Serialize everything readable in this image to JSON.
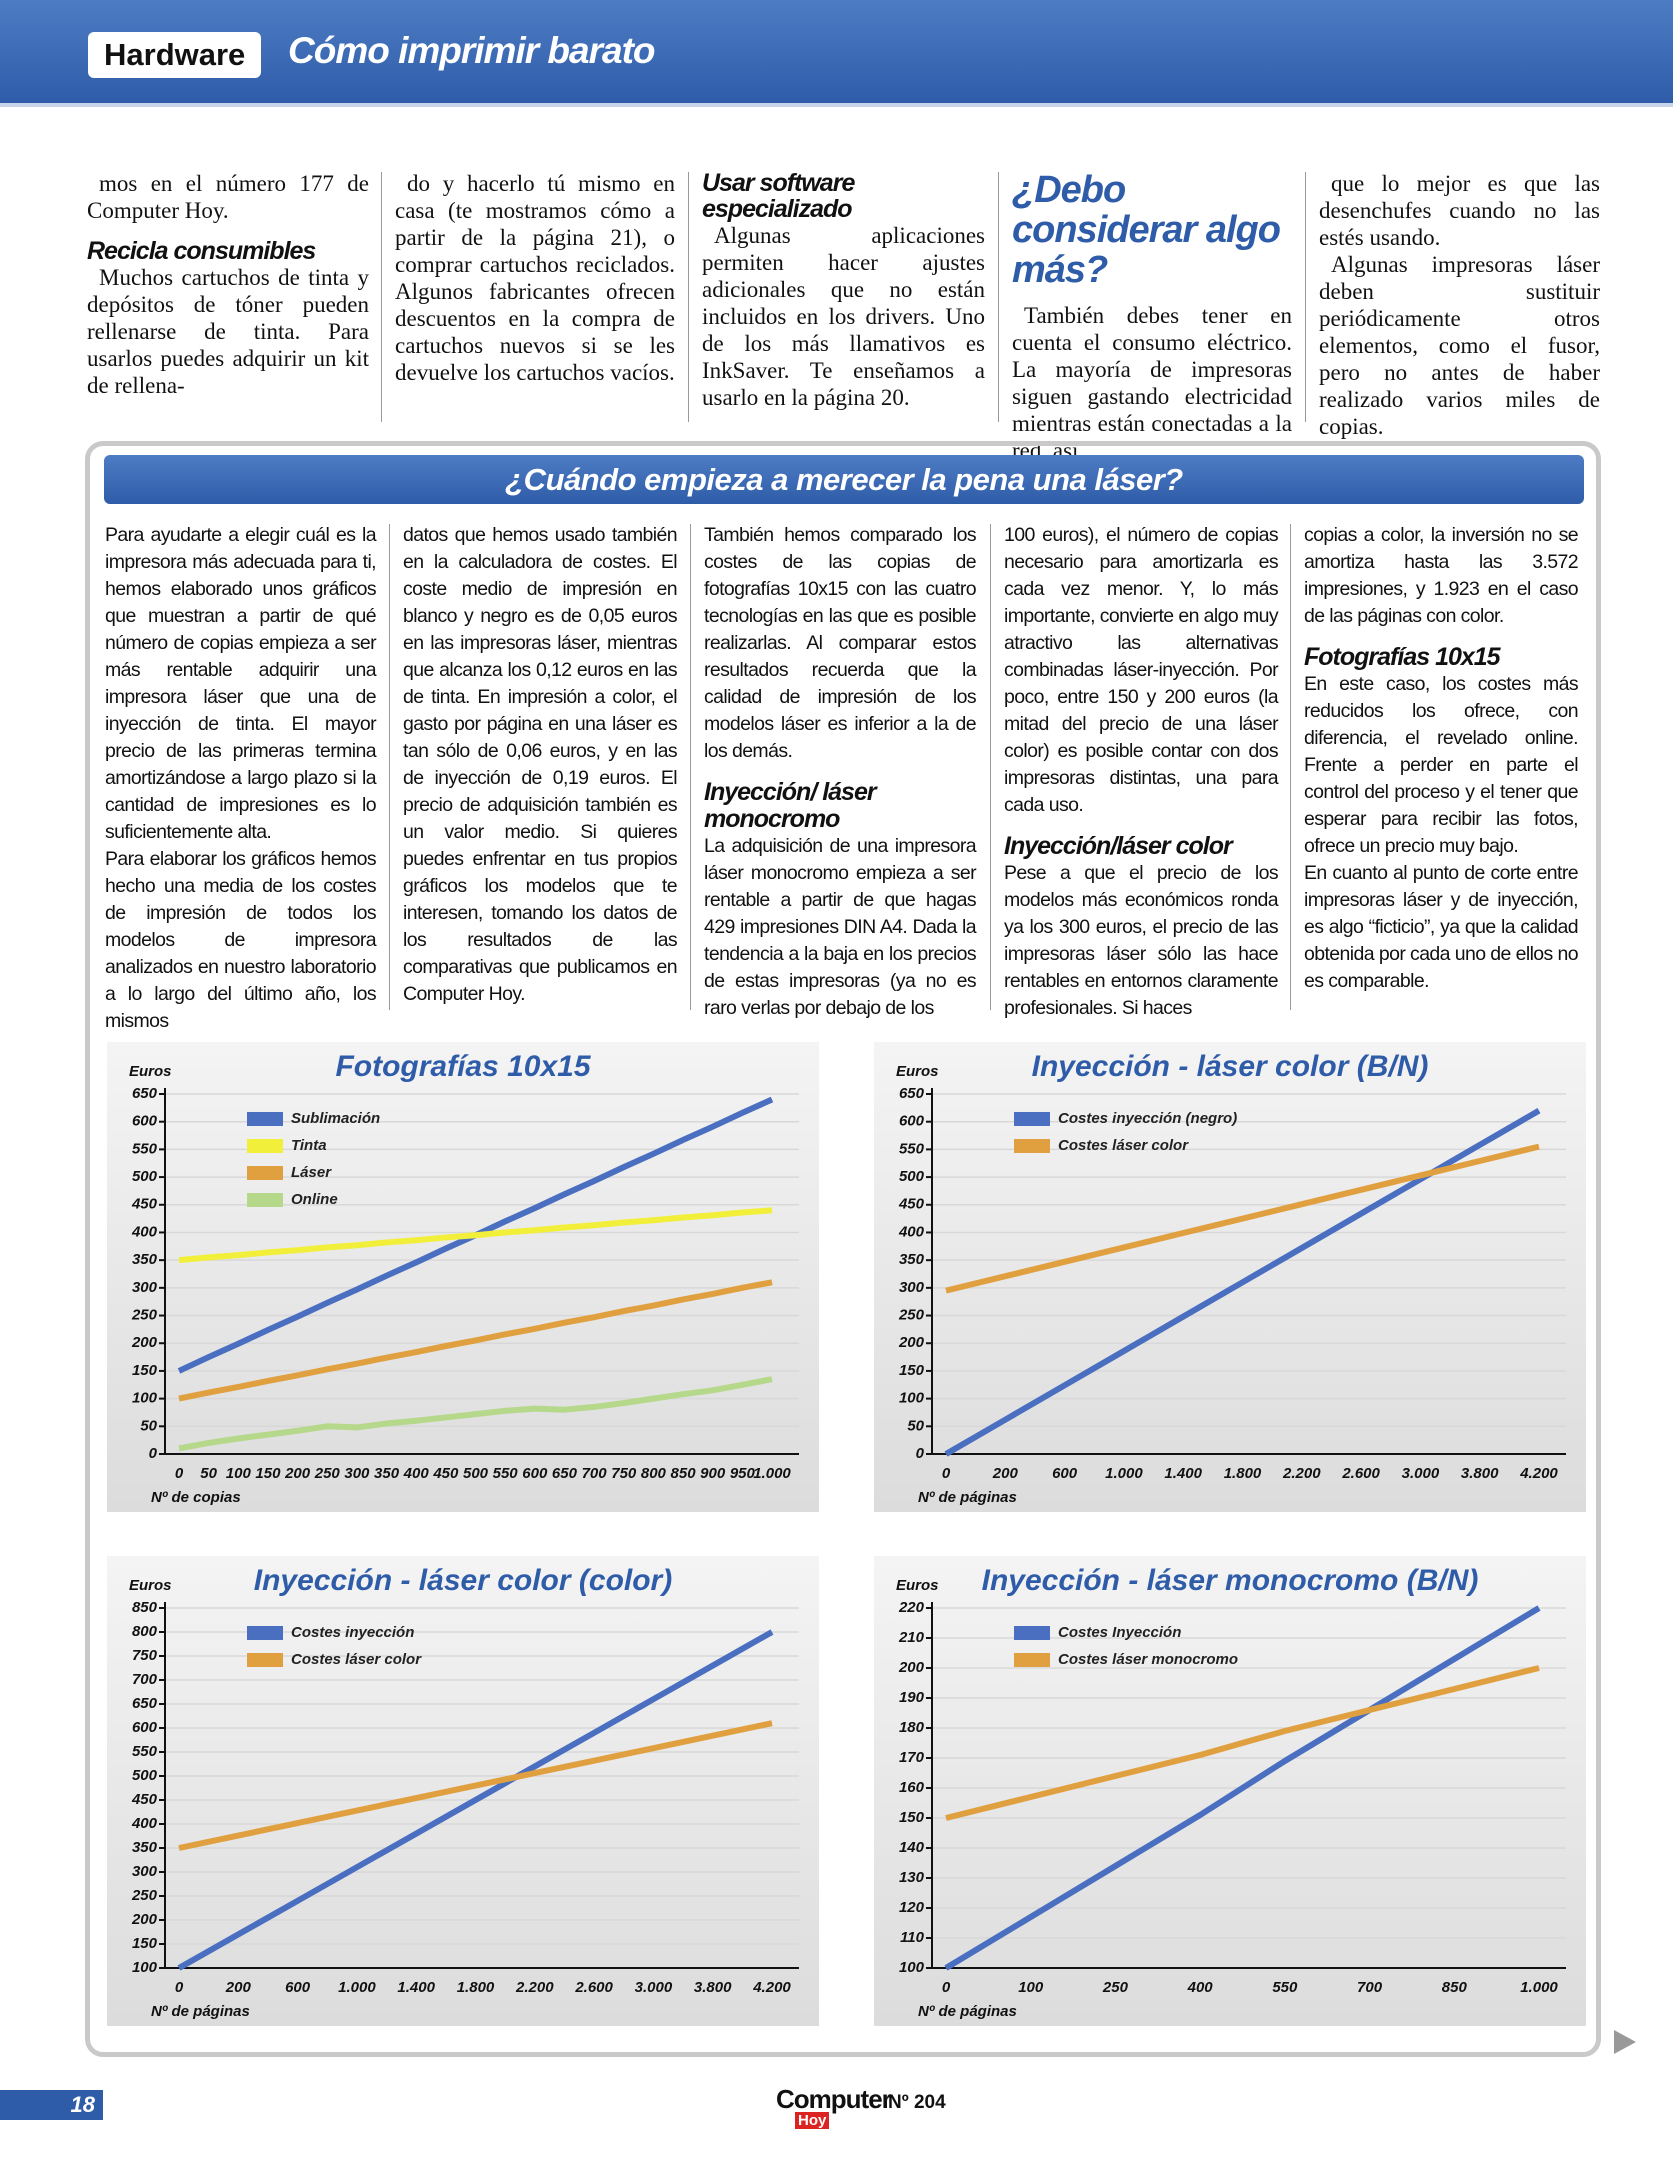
{
  "header": {
    "section": "Hardware",
    "title": "Cómo imprimir barato"
  },
  "top_columns": [
    [
      {
        "text": "mos en el número 177 de Computer Hoy."
      },
      {
        "heading": "Recicla consumibles"
      },
      {
        "text": "Muchos cartuchos de tinta y depósitos de tóner pueden rellenarse de tinta. Para usarlos puedes adquirir un kit de rellena-"
      }
    ],
    [
      {
        "text": "do y hacerlo tú mismo en casa (te mostramos cómo a partir de la página 21), o comprar cartuchos reciclados. Algunos fabricantes ofrecen descuentos en la compra de cartuchos nuevos si se les devuelve los cartuchos vacíos."
      }
    ],
    [
      {
        "heading": "Usar software especializado"
      },
      {
        "text": "Algunas aplicaciones permiten hacer ajustes adicionales que no están incluidos en los drivers. Uno de los más llamativos es InkSaver. Te enseñamos a usarlo en la página 20."
      }
    ],
    [
      {
        "heading": "¿Debo considerar algo más?"
      },
      {
        "text": "También debes tener en cuenta el consumo eléctrico. La mayoría de impresoras siguen gastando electricidad mientras están conectadas a la red, así"
      }
    ],
    [
      {
        "text": "que lo mejor es que las desenchufes cuando no las estés usando."
      },
      {
        "text": "Algunas impresoras láser deben sustituir periódicamente otros elementos, como el fusor, pero no antes de haber realizado varios miles de copias."
      }
    ]
  ],
  "box": {
    "title": "¿Cuándo empieza a merecer la pena una láser?",
    "columns": [
      [
        {
          "text": "Para ayudarte a elegir cuál es la impresora más adecuada para ti, hemos elaborado unos gráficos que muestran a partir de qué número de copias empieza a ser más rentable adquirir una impresora láser que una de inyección de tinta. El mayor precio de las primeras termina amortizándose a largo plazo si la cantidad de impresiones es lo suficientemente alta."
        },
        {
          "text": "Para elaborar los gráficos hemos hecho una media de los costes de impresión de todos los modelos de impresora analizados en nuestro laboratorio a lo largo del último año, los mismos"
        }
      ],
      [
        {
          "text": "datos que hemos usado también en la calculadora de costes. El coste medio de impresión en blanco y negro es de 0,05 euros en las impresoras láser, mientras que alcanza los 0,12 euros en las de tinta. En impresión a color, el gasto por página en una láser es tan sólo de 0,06 euros, y en las de inyección de 0,19 euros. El precio de adquisición también es un valor medio. Si quieres puedes enfrentar en tus propios gráficos los modelos que te interesen, tomando los datos de los resultados de las comparativas que publicamos en Computer Hoy."
        }
      ],
      [
        {
          "text": "También hemos comparado los costes de las copias de fotografías 10x15 con las cuatro tecnologías en las que es posible realizarlas. Al comparar estos resultados recuerda que la calidad de impresión de los modelos láser es inferior a la de los demás."
        },
        {
          "heading": "Inyección/ láser monocromo"
        },
        {
          "text": "La adquisición de una impresora láser monocromo empieza a ser rentable a partir de que hagas 429 impresiones DIN A4. Dada la tendencia a la baja en los precios de estas impresoras (ya no es raro verlas por debajo de los"
        }
      ],
      [
        {
          "text": "100 euros), el número de copias necesario para amortizarla es cada vez menor. Y, lo más importante, convierte en algo muy atractivo las alternativas combinadas láser-inyección. Por poco, entre 150 y 200 euros (la mitad del precio de una láser color) es posible contar con dos impresoras distintas, una para cada uso."
        },
        {
          "heading": "Inyección/láser color"
        },
        {
          "text": "Pese a que el precio de los modelos más económicos ronda ya los 300 euros, el precio de las impresoras láser sólo las hace rentables en entornos claramente profesionales. Si haces"
        }
      ],
      [
        {
          "text": "copias a color, la inversión no se amortiza hasta las 3.572 impresiones, y 1.923 en el caso de las páginas con color."
        },
        {
          "heading": "Fotografías 10x15"
        },
        {
          "text": "En este caso, los costes más reducidos los ofrece, con diferencia, el revelado online. Frente a perder en parte el control del proceso y el tener que esperar para recibir las fotos, ofrece un precio muy bajo."
        },
        {
          "text": "En cuanto al punto de corte entre impresoras láser y de inyección, es algo “ficticio”, ya que la calidad obtenida por cada uno de ellos no es comparable."
        }
      ]
    ]
  },
  "chart_data": [
    {
      "type": "line",
      "title": "Fotografías 10x15",
      "y_label": "Euros",
      "x_label": "Nº de copias",
      "categories": [
        "0",
        "50",
        "100",
        "150",
        "200",
        "250",
        "300",
        "350",
        "400",
        "450",
        "500",
        "550",
        "600",
        "650",
        "700",
        "750",
        "800",
        "850",
        "900",
        "950",
        "1.000"
      ],
      "series": [
        {
          "name": "Sublimación",
          "color": "#4a6fc0",
          "values": [
            150,
            175,
            199,
            224,
            248,
            273,
            297,
            322,
            346,
            371,
            395,
            420,
            444,
            469,
            493,
            518,
            542,
            567,
            591,
            616,
            640
          ]
        },
        {
          "name": "Tinta",
          "color": "#f2ef3a",
          "values": [
            350,
            355,
            359,
            364,
            368,
            373,
            377,
            382,
            386,
            391,
            395,
            400,
            404,
            409,
            413,
            418,
            422,
            427,
            431,
            436,
            440
          ]
        },
        {
          "name": "Láser",
          "color": "#e0a040",
          "values": [
            100,
            111,
            121,
            132,
            142,
            153,
            163,
            174,
            184,
            195,
            205,
            216,
            226,
            237,
            247,
            258,
            268,
            279,
            289,
            300,
            310
          ]
        },
        {
          "name": "Online",
          "color": "#b5d88a",
          "values": [
            10,
            20,
            28,
            35,
            42,
            50,
            48,
            55,
            60,
            66,
            72,
            78,
            82,
            80,
            85,
            92,
            100,
            108,
            115,
            125,
            135
          ]
        }
      ],
      "ylim": [
        0,
        650
      ],
      "yticks": [
        0,
        50,
        100,
        150,
        200,
        250,
        300,
        350,
        400,
        450,
        500,
        550,
        600,
        650
      ],
      "grid": true,
      "legend": "top-left"
    },
    {
      "type": "line",
      "title": "Inyección - láser color (B/N)",
      "y_label": "Euros",
      "x_label": "Nº de páginas",
      "categories": [
        "0",
        "200",
        "600",
        "1.000",
        "1.400",
        "1.800",
        "2.200",
        "2.600",
        "3.000",
        "3.800",
        "4.200"
      ],
      "series": [
        {
          "name": "Costes inyección (negro)",
          "color": "#4a6fc0",
          "values": [
            0,
            62,
            124,
            186,
            248,
            310,
            372,
            434,
            496,
            558,
            620
          ]
        },
        {
          "name": "Costes láser color",
          "color": "#e0a040",
          "values": [
            295,
            321,
            347,
            373,
            399,
            425,
            451,
            477,
            503,
            529,
            555
          ]
        }
      ],
      "ylim": [
        0,
        650
      ],
      "yticks": [
        0,
        50,
        100,
        150,
        200,
        250,
        300,
        350,
        400,
        450,
        500,
        550,
        600,
        650
      ],
      "grid": true,
      "legend": "top-left"
    },
    {
      "type": "line",
      "title": "Inyección - láser color (color)",
      "y_label": "Euros",
      "x_label": "Nº de páginas",
      "categories": [
        "0",
        "200",
        "600",
        "1.000",
        "1.400",
        "1.800",
        "2.200",
        "2.600",
        "3.000",
        "3.800",
        "4.200"
      ],
      "series": [
        {
          "name": "Costes inyección",
          "color": "#4a6fc0",
          "values": [
            100,
            170,
            240,
            310,
            380,
            450,
            520,
            590,
            660,
            730,
            800
          ]
        },
        {
          "name": "Costes láser color",
          "color": "#e0a040",
          "values": [
            350,
            376,
            402,
            428,
            454,
            480,
            506,
            532,
            558,
            584,
            610
          ]
        }
      ],
      "ylim": [
        100,
        850
      ],
      "yticks": [
        100,
        150,
        200,
        250,
        300,
        350,
        400,
        450,
        500,
        550,
        600,
        650,
        700,
        750,
        800,
        850
      ],
      "grid": true,
      "legend": "top-left"
    },
    {
      "type": "line",
      "title": "Inyección - láser monocromo (B/N)",
      "y_label": "Euros",
      "x_label": "Nº de páginas",
      "categories": [
        "0",
        "100",
        "250",
        "400",
        "550",
        "700",
        "850",
        "1.000"
      ],
      "series": [
        {
          "name": "Costes Inyección",
          "color": "#4a6fc0",
          "values": [
            100,
            117,
            134,
            151,
            169,
            186,
            203,
            220
          ]
        },
        {
          "name": "Costes láser monocromo",
          "color": "#e0a040",
          "values": [
            150,
            157,
            164,
            171,
            179,
            186,
            193,
            200
          ]
        }
      ],
      "ylim": [
        100,
        220
      ],
      "yticks": [
        100,
        110,
        120,
        130,
        140,
        150,
        160,
        170,
        180,
        190,
        200,
        210,
        220
      ],
      "grid": true,
      "legend": "top-left"
    }
  ],
  "footer": {
    "page": "18",
    "logo_top": "Computer",
    "logo_bottom": "Hoy",
    "issue": "Nº 204"
  }
}
